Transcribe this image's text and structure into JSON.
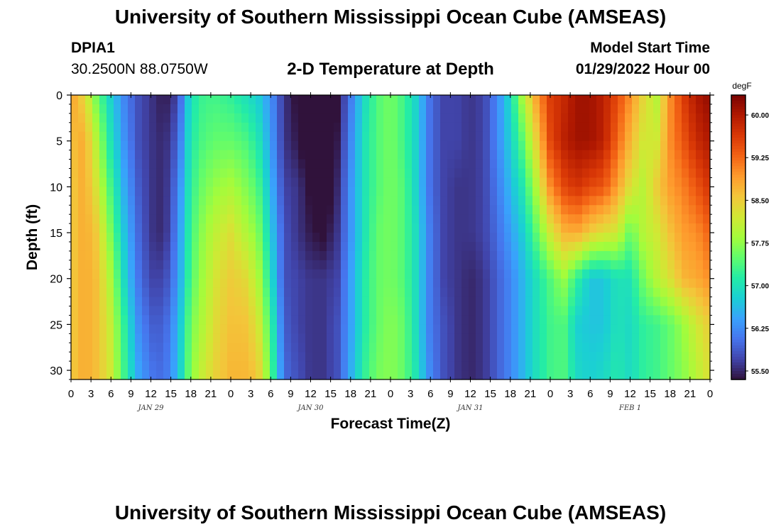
{
  "header": {
    "title": "University of Southern Mississippi Ocean Cube (AMSEAS)",
    "station_id": "DPIA1",
    "coordinates": "30.2500N  88.0750W",
    "plot_title": "2-D Temperature at Depth",
    "start_label": "Model Start Time",
    "start_value": "01/29/2022 Hour 00"
  },
  "footer": {
    "title": "University of Southern Mississippi Ocean Cube (AMSEAS)"
  },
  "chart_data": {
    "type": "heatmap",
    "title": "2-D Temperature at Depth",
    "xlabel": "Forecast Time(Z)",
    "ylabel": "Depth (ft)",
    "x_hours_range": [
      0,
      96
    ],
    "y_range": [
      0,
      31
    ],
    "y_inverted": true,
    "x_tick_hours": [
      0,
      3,
      6,
      9,
      12,
      15,
      18,
      21,
      24,
      27,
      30,
      33,
      36,
      39,
      42,
      45,
      48,
      51,
      54,
      57,
      60,
      63,
      66,
      69,
      72,
      75,
      78,
      81,
      84,
      87,
      90,
      93,
      96
    ],
    "x_tick_labels": [
      "0",
      "3",
      "6",
      "9",
      "12",
      "15",
      "18",
      "21",
      "0",
      "3",
      "6",
      "9",
      "12",
      "15",
      "18",
      "21",
      "0",
      "3",
      "6",
      "9",
      "12",
      "15",
      "18",
      "21",
      "0",
      "3",
      "6",
      "9",
      "12",
      "15",
      "18",
      "21",
      "0"
    ],
    "date_labels": [
      {
        "hour": 12,
        "label": "JAN 29"
      },
      {
        "hour": 36,
        "label": "JAN 30"
      },
      {
        "hour": 60,
        "label": "JAN 31"
      },
      {
        "hour": 84,
        "label": "FEB 1"
      }
    ],
    "y_ticks": [
      0,
      5,
      10,
      15,
      20,
      25,
      30
    ],
    "colorbar": {
      "unit": "degF",
      "range": [
        55.35,
        60.35
      ],
      "ticks": [
        55.5,
        56.25,
        57.0,
        57.75,
        58.5,
        59.25,
        60.0
      ],
      "tick_labels": [
        "55.50",
        "56.25",
        "57.00",
        "57.75",
        "58.50",
        "59.25",
        "60.00"
      ],
      "colors": [
        "#30123b",
        "#4145ab",
        "#4675ed",
        "#39a2fc",
        "#1bcfd4",
        "#24eca6",
        "#61fc6c",
        "#a4fc3b",
        "#d1e834",
        "#f3c63a",
        "#fe9b2d",
        "#f36315",
        "#d93806",
        "#b11901",
        "#7a0402"
      ]
    },
    "depth_levels_ft": [
      0,
      5,
      10,
      15,
      20,
      25,
      31
    ],
    "hours": [
      0,
      2,
      4,
      6,
      8,
      10,
      12,
      14,
      16,
      18,
      20,
      22,
      24,
      26,
      28,
      30,
      32,
      34,
      36,
      38,
      40,
      42,
      44,
      46,
      48,
      50,
      52,
      54,
      56,
      58,
      60,
      62,
      64,
      66,
      68,
      70,
      72,
      74,
      76,
      78,
      80,
      82,
      84,
      86,
      88,
      90,
      92,
      94,
      96
    ],
    "values_degF": [
      [
        58.9,
        58.6,
        58.5,
        58.5,
        58.5,
        58.5,
        58.5
      ],
      [
        58.4,
        58.8,
        58.8,
        58.8,
        58.8,
        58.8,
        58.8
      ],
      [
        57.5,
        57.9,
        58.2,
        58.5,
        58.6,
        58.6,
        58.6
      ],
      [
        56.8,
        57.0,
        57.3,
        57.6,
        57.9,
        58.1,
        58.2
      ],
      [
        56.2,
        56.3,
        56.5,
        56.7,
        56.9,
        57.2,
        57.3
      ],
      [
        55.8,
        55.8,
        55.9,
        56.0,
        56.1,
        56.3,
        56.5
      ],
      [
        55.6,
        55.6,
        55.6,
        55.6,
        55.7,
        55.9,
        56.1
      ],
      [
        55.4,
        55.5,
        55.5,
        55.5,
        55.7,
        55.9,
        56.0
      ],
      [
        55.7,
        55.9,
        56.1,
        56.2,
        56.3,
        56.5,
        56.6
      ],
      [
        57.0,
        57.1,
        57.2,
        57.3,
        57.4,
        57.6,
        57.7
      ],
      [
        57.3,
        57.4,
        57.6,
        57.8,
        57.9,
        58.0,
        58.2
      ],
      [
        57.3,
        57.5,
        57.8,
        58.1,
        58.3,
        58.4,
        58.5
      ],
      [
        57.2,
        57.5,
        57.9,
        58.3,
        58.5,
        58.6,
        58.7
      ],
      [
        57.0,
        57.4,
        57.7,
        58.0,
        58.4,
        58.6,
        58.7
      ],
      [
        56.8,
        57.1,
        57.4,
        57.7,
        58.0,
        58.3,
        58.6
      ],
      [
        56.3,
        56.4,
        56.6,
        56.8,
        57.0,
        57.3,
        57.5
      ],
      [
        55.6,
        55.6,
        55.7,
        55.8,
        55.8,
        55.9,
        56.0
      ],
      [
        55.3,
        55.4,
        55.6,
        55.6,
        55.7,
        55.7,
        55.8
      ],
      [
        55.0,
        55.1,
        55.3,
        55.4,
        55.6,
        55.6,
        55.6
      ],
      [
        54.9,
        55.0,
        55.1,
        55.3,
        55.6,
        55.6,
        55.6
      ],
      [
        55.3,
        55.4,
        55.5,
        55.6,
        55.7,
        55.8,
        55.8
      ],
      [
        56.1,
        56.2,
        56.3,
        56.3,
        56.4,
        56.4,
        56.5
      ],
      [
        56.9,
        57.0,
        57.0,
        57.0,
        57.1,
        57.1,
        57.2
      ],
      [
        57.4,
        57.4,
        57.4,
        57.5,
        57.5,
        57.5,
        57.6
      ],
      [
        57.6,
        57.6,
        57.6,
        57.6,
        57.6,
        57.7,
        57.7
      ],
      [
        57.3,
        57.3,
        57.4,
        57.4,
        57.4,
        57.5,
        57.5
      ],
      [
        56.8,
        56.8,
        56.8,
        56.9,
        56.9,
        56.9,
        57.0
      ],
      [
        56.0,
        56.0,
        56.0,
        56.1,
        56.1,
        56.1,
        56.2
      ],
      [
        55.7,
        55.7,
        55.7,
        55.7,
        55.7,
        55.8,
        55.8
      ],
      [
        55.7,
        55.7,
        55.6,
        55.6,
        55.6,
        55.6,
        55.6
      ],
      [
        55.6,
        55.6,
        55.6,
        55.6,
        55.5,
        55.5,
        55.5
      ],
      [
        55.7,
        55.7,
        55.7,
        55.7,
        55.6,
        55.6,
        55.6
      ],
      [
        56.2,
        56.2,
        56.1,
        56.0,
        55.9,
        55.9,
        55.9
      ],
      [
        56.9,
        56.8,
        56.6,
        56.4,
        56.2,
        56.2,
        56.2
      ],
      [
        58.0,
        57.5,
        57.1,
        56.8,
        56.6,
        56.6,
        56.6
      ],
      [
        58.9,
        58.5,
        58.0,
        57.5,
        57.0,
        57.0,
        57.0
      ],
      [
        59.6,
        59.5,
        59.0,
        58.2,
        57.4,
        57.3,
        57.3
      ],
      [
        59.8,
        59.9,
        59.5,
        58.7,
        57.8,
        57.4,
        57.4
      ],
      [
        60.1,
        60.1,
        59.7,
        58.8,
        57.2,
        56.8,
        56.9
      ],
      [
        60.1,
        60.1,
        59.5,
        58.5,
        56.7,
        56.7,
        56.8
      ],
      [
        59.9,
        59.9,
        59.4,
        58.3,
        56.7,
        56.7,
        56.9
      ],
      [
        59.5,
        59.3,
        58.9,
        58.2,
        57.0,
        57.0,
        57.1
      ],
      [
        59.0,
        58.7,
        58.3,
        57.5,
        57.0,
        56.9,
        56.9
      ],
      [
        58.4,
        58.2,
        58.0,
        58.0,
        57.6,
        57.2,
        57.2
      ],
      [
        58.0,
        58.2,
        58.5,
        58.2,
        58.0,
        57.3,
        57.3
      ],
      [
        59.0,
        59.0,
        58.9,
        58.6,
        58.3,
        57.5,
        57.5
      ],
      [
        59.6,
        59.4,
        59.1,
        58.9,
        58.7,
        57.8,
        57.7
      ],
      [
        60.0,
        59.8,
        59.4,
        59.0,
        58.8,
        58.2,
        58.0
      ],
      [
        60.2,
        60.0,
        59.7,
        59.3,
        59.0,
        58.5,
        58.3
      ]
    ]
  }
}
